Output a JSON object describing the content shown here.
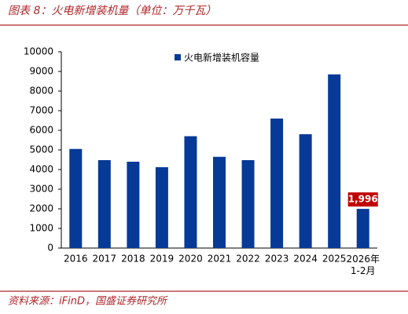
{
  "chart_data": {
    "type": "bar",
    "title": "图表 8：火电新增装机量（单位：万千瓦）",
    "source": "资料来源：iFinD，国盛证券研究所",
    "categories": [
      "2016",
      "2017",
      "2018",
      "2019",
      "2020",
      "2021",
      "2022",
      "2023",
      "2024",
      "2025",
      "2026年1-2月"
    ],
    "series": [
      {
        "name": "火电新增装机容量",
        "color": "#073a97",
        "values": [
          5050,
          4480,
          4400,
          4120,
          5700,
          4650,
          4480,
          6600,
          5800,
          8850,
          1996
        ],
        "value_labels": [
          null,
          null,
          null,
          null,
          null,
          null,
          null,
          null,
          null,
          null,
          "1,996"
        ]
      }
    ],
    "ylim": [
      0,
      10000
    ],
    "yticks": [
      0,
      1000,
      2000,
      3000,
      4000,
      5000,
      6000,
      7000,
      8000,
      9000,
      10000
    ],
    "label_color": "#c00000"
  }
}
